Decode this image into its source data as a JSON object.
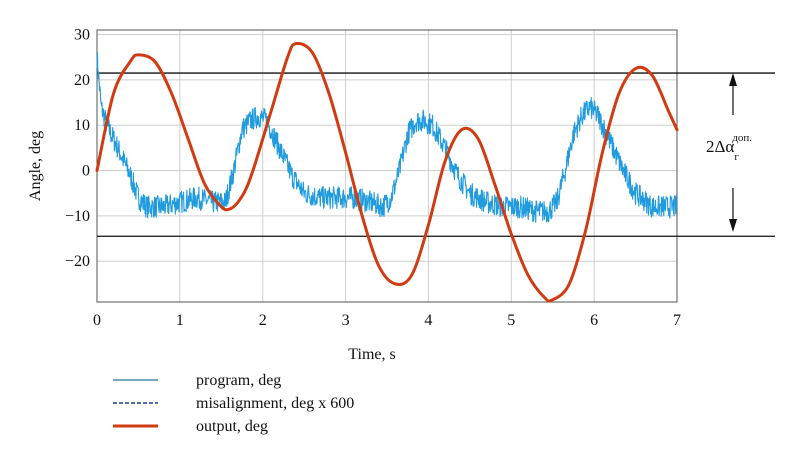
{
  "chart_data": {
    "type": "line",
    "xlabel": "Time, s",
    "ylabel": "Angle, deg",
    "xlim": [
      0,
      7
    ],
    "ylim": [
      -29,
      31
    ],
    "xticks": [
      0,
      1,
      2,
      3,
      4,
      5,
      6,
      7
    ],
    "yticks": [
      -20,
      -10,
      0,
      10,
      20,
      30
    ],
    "ytick_labels": [
      "−20",
      "−10",
      "0",
      "10",
      "20",
      "30"
    ],
    "grid": true,
    "legend_position": "bottom-left",
    "series": [
      {
        "name": "program, deg",
        "color": "#1f9bde",
        "style": "solid-noisy",
        "x": [
          0.0,
          0.05,
          0.12,
          0.25,
          0.4,
          0.5,
          0.6,
          0.8,
          1.0,
          1.2,
          1.4,
          1.55,
          1.65,
          1.75,
          1.85,
          1.95,
          2.05,
          2.2,
          2.35,
          2.5,
          2.7,
          2.9,
          3.1,
          3.3,
          3.45,
          3.55,
          3.65,
          3.75,
          3.85,
          3.95,
          4.05,
          4.2,
          4.35,
          4.5,
          4.7,
          4.9,
          5.1,
          5.3,
          5.45,
          5.55,
          5.65,
          5.75,
          5.85,
          5.95,
          6.05,
          6.2,
          6.35,
          6.5,
          6.7,
          7.0
        ],
        "y": [
          25,
          14,
          10,
          5,
          -1,
          -6,
          -8,
          -8,
          -7,
          -6,
          -7,
          -7,
          0,
          9,
          11,
          12,
          11,
          5,
          -1,
          -5,
          -6,
          -6,
          -6,
          -7,
          -8,
          -6,
          0,
          8,
          11,
          11,
          10,
          5,
          -1,
          -5,
          -7,
          -8,
          -8,
          -9,
          -9,
          -7,
          0,
          8,
          12,
          14,
          12,
          6,
          0,
          -5,
          -8,
          -8
        ]
      },
      {
        "name": "misalignment, deg x 600",
        "color": "#1e3f9e",
        "style": "dashed",
        "x": [],
        "y": []
      },
      {
        "name": "output, deg",
        "color": "#d13b12",
        "style": "solid",
        "x": [
          0.0,
          0.2,
          0.4,
          0.5,
          0.7,
          0.9,
          1.1,
          1.3,
          1.5,
          1.6,
          1.7,
          1.8,
          1.9,
          2.1,
          2.3,
          2.4,
          2.6,
          2.8,
          3.0,
          3.2,
          3.4,
          3.6,
          3.8,
          4.0,
          4.2,
          4.4,
          4.6,
          4.8,
          5.0,
          5.2,
          5.4,
          5.5,
          5.7,
          5.9,
          6.1,
          6.3,
          6.5,
          6.7,
          6.9,
          7.0
        ],
        "y": [
          0,
          17,
          24,
          25.5,
          24,
          17,
          7,
          -3,
          -8,
          -8.5,
          -7,
          -4,
          1,
          13,
          25,
          28,
          26,
          17,
          4,
          -10,
          -21,
          -25,
          -23,
          -12,
          2,
          9,
          7,
          -3,
          -14,
          -23,
          -28,
          -28.5,
          -25,
          -13,
          4,
          17,
          22.5,
          21,
          13,
          9
        ]
      }
    ],
    "reference_lines": [
      {
        "y": 21.5
      },
      {
        "y": -14.5
      }
    ],
    "annotation": {
      "prefix": "2Δα",
      "subscript": "г",
      "superscript": "доп."
    }
  }
}
